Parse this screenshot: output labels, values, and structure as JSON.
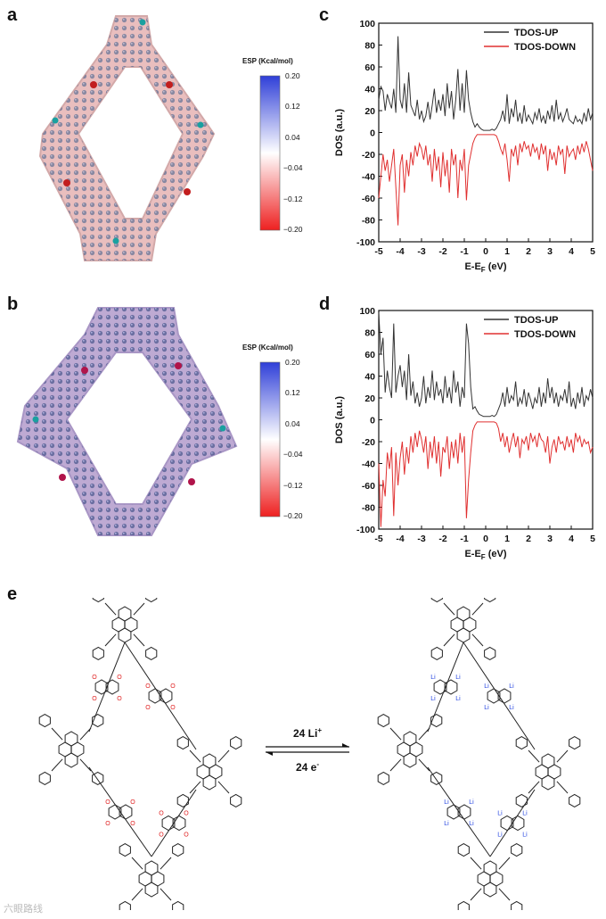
{
  "panels": {
    "a": "a",
    "b": "b",
    "c": "c",
    "d": "d",
    "e": "e"
  },
  "esp": {
    "title": "ESP (Kcal/mol)",
    "ticks": [
      "0.20",
      "0.12",
      "0.04",
      "−0.04",
      "−0.12",
      "−0.20"
    ],
    "colors": {
      "top": "#2f3fd8",
      "mid": "#ffffff",
      "bottom": "#ee2020"
    }
  },
  "chart_data": [
    {
      "type": "line",
      "panel": "c",
      "xlabel": "E-E",
      "xlabel_sub": "F",
      "xlabel_unit": " (eV)",
      "ylabel": "DOS (a.u.)",
      "xlim": [
        -5,
        5
      ],
      "ylim": [
        -100,
        100
      ],
      "xticks": [
        -5,
        -4,
        -3,
        -2,
        -1,
        0,
        1,
        2,
        3,
        4,
        5
      ],
      "yticks": [
        100,
        80,
        60,
        40,
        20,
        0,
        -20,
        -40,
        -60,
        -80,
        -100
      ],
      "legend_position": "top-right",
      "series": [
        {
          "name": "TDOS-UP",
          "color": "#333333",
          "x": [
            -5,
            -4.9,
            -4.8,
            -4.7,
            -4.6,
            -4.5,
            -4.4,
            -4.3,
            -4.2,
            -4.1,
            -4,
            -3.9,
            -3.8,
            -3.7,
            -3.6,
            -3.5,
            -3.4,
            -3.3,
            -3.2,
            -3.1,
            -3,
            -2.9,
            -2.8,
            -2.7,
            -2.6,
            -2.5,
            -2.4,
            -2.3,
            -2.2,
            -2.1,
            -2,
            -1.9,
            -1.8,
            -1.7,
            -1.6,
            -1.5,
            -1.4,
            -1.3,
            -1.2,
            -1.1,
            -1,
            -0.9,
            -0.8,
            -0.7,
            -0.6,
            -0.5,
            -0.4,
            -0.3,
            -0.2,
            -0.1,
            0,
            0.1,
            0.2,
            0.3,
            0.4,
            0.5,
            0.6,
            0.7,
            0.8,
            0.9,
            1,
            1.1,
            1.2,
            1.3,
            1.4,
            1.5,
            1.6,
            1.7,
            1.8,
            1.9,
            2,
            2.1,
            2.2,
            2.3,
            2.4,
            2.5,
            2.6,
            2.7,
            2.8,
            2.9,
            3,
            3.1,
            3.2,
            3.3,
            3.4,
            3.5,
            3.6,
            3.7,
            3.8,
            3.9,
            4,
            4.1,
            4.2,
            4.3,
            4.4,
            4.5,
            4.6,
            4.7,
            4.8,
            4.9,
            5
          ],
          "y": [
            30,
            42,
            38,
            20,
            35,
            28,
            22,
            40,
            18,
            88,
            30,
            22,
            45,
            18,
            55,
            25,
            20,
            15,
            30,
            12,
            20,
            10,
            15,
            28,
            12,
            25,
            40,
            18,
            30,
            20,
            35,
            15,
            45,
            22,
            38,
            12,
            30,
            58,
            20,
            45,
            18,
            57,
            30,
            18,
            10,
            5,
            8,
            5,
            3,
            2,
            2,
            2,
            2,
            3,
            2,
            4,
            8,
            12,
            20,
            10,
            35,
            8,
            22,
            14,
            30,
            10,
            18,
            8,
            25,
            10,
            16,
            12,
            8,
            18,
            12,
            22,
            10,
            15,
            8,
            20,
            12,
            25,
            10,
            30,
            12,
            18,
            10,
            15,
            22,
            12,
            10,
            8,
            15,
            10,
            12,
            8,
            18,
            10,
            22,
            12,
            18
          ]
        },
        {
          "name": "TDOS-DOWN",
          "color": "#e03030",
          "x": [
            -5,
            -4.9,
            -4.8,
            -4.7,
            -4.6,
            -4.5,
            -4.4,
            -4.3,
            -4.2,
            -4.1,
            -4,
            -3.9,
            -3.8,
            -3.7,
            -3.6,
            -3.5,
            -3.4,
            -3.3,
            -3.2,
            -3.1,
            -3,
            -2.9,
            -2.8,
            -2.7,
            -2.6,
            -2.5,
            -2.4,
            -2.3,
            -2.2,
            -2.1,
            -2,
            -1.9,
            -1.8,
            -1.7,
            -1.6,
            -1.5,
            -1.4,
            -1.3,
            -1.2,
            -1.1,
            -1,
            -0.9,
            -0.8,
            -0.7,
            -0.6,
            -0.5,
            -0.4,
            -0.3,
            -0.2,
            -0.1,
            0,
            0.1,
            0.2,
            0.3,
            0.4,
            0.5,
            0.6,
            0.7,
            0.8,
            0.9,
            1,
            1.1,
            1.2,
            1.3,
            1.4,
            1.5,
            1.6,
            1.7,
            1.8,
            1.9,
            2,
            2.1,
            2.2,
            2.3,
            2.4,
            2.5,
            2.6,
            2.7,
            2.8,
            2.9,
            3,
            3.1,
            3.2,
            3.3,
            3.4,
            3.5,
            3.6,
            3.7,
            3.8,
            3.9,
            4,
            4.1,
            4.2,
            4.3,
            4.4,
            4.5,
            4.6,
            4.7,
            4.8,
            4.9,
            5
          ],
          "y": [
            -60,
            -40,
            -20,
            -35,
            -25,
            -45,
            -30,
            -15,
            -50,
            -85,
            -30,
            -20,
            -55,
            -25,
            -40,
            -18,
            -30,
            -12,
            -22,
            -10,
            -15,
            -25,
            -12,
            -30,
            -20,
            -45,
            -15,
            -35,
            -22,
            -50,
            -18,
            -40,
            -25,
            -55,
            -15,
            -30,
            -20,
            -60,
            -25,
            -35,
            -15,
            -62,
            -30,
            -20,
            -10,
            -5,
            -2,
            -2,
            -2,
            -2,
            -2,
            -2,
            -2,
            -2,
            -2,
            -3,
            -8,
            -15,
            -20,
            -10,
            -25,
            -45,
            -15,
            -22,
            -12,
            -30,
            -10,
            -18,
            -8,
            -15,
            -12,
            -22,
            -10,
            -18,
            -14,
            -25,
            -10,
            -20,
            -12,
            -35,
            -15,
            -25,
            -18,
            -30,
            -12,
            -20,
            -15,
            -38,
            -12,
            -22,
            -18,
            -15,
            -25,
            -12,
            -20,
            -10,
            -18,
            -8,
            -15,
            -25,
            -35
          ]
        }
      ]
    },
    {
      "type": "line",
      "panel": "d",
      "xlabel": "E-E",
      "xlabel_sub": "F",
      "xlabel_unit": " (eV)",
      "ylabel": "DOS (a.u.)",
      "xlim": [
        -5,
        5
      ],
      "ylim": [
        -100,
        100
      ],
      "xticks": [
        -5,
        -4,
        -3,
        -2,
        -1,
        0,
        1,
        2,
        3,
        4,
        5
      ],
      "yticks": [
        100,
        80,
        60,
        40,
        20,
        0,
        -20,
        -40,
        -60,
        -80,
        -100
      ],
      "legend_position": "top-right",
      "series": [
        {
          "name": "TDOS-UP",
          "color": "#333333",
          "x": [
            -5,
            -4.9,
            -4.8,
            -4.7,
            -4.6,
            -4.5,
            -4.4,
            -4.3,
            -4.2,
            -4.1,
            -4,
            -3.9,
            -3.8,
            -3.7,
            -3.6,
            -3.5,
            -3.4,
            -3.3,
            -3.2,
            -3.1,
            -3,
            -2.9,
            -2.8,
            -2.7,
            -2.6,
            -2.5,
            -2.4,
            -2.3,
            -2.2,
            -2.1,
            -2,
            -1.9,
            -1.8,
            -1.7,
            -1.6,
            -1.5,
            -1.4,
            -1.3,
            -1.2,
            -1.1,
            -1,
            -0.9,
            -0.8,
            -0.7,
            -0.6,
            -0.5,
            -0.4,
            -0.3,
            -0.2,
            -0.1,
            0,
            0.1,
            0.2,
            0.3,
            0.4,
            0.5,
            0.6,
            0.7,
            0.8,
            0.9,
            1,
            1.1,
            1.2,
            1.3,
            1.4,
            1.5,
            1.6,
            1.7,
            1.8,
            1.9,
            2,
            2.1,
            2.2,
            2.3,
            2.4,
            2.5,
            2.6,
            2.7,
            2.8,
            2.9,
            3,
            3.1,
            3.2,
            3.3,
            3.4,
            3.5,
            3.6,
            3.7,
            3.8,
            3.9,
            4,
            4.1,
            4.2,
            4.3,
            4.4,
            4.5,
            4.6,
            4.7,
            4.8,
            4.9,
            5
          ],
          "y": [
            98,
            60,
            75,
            25,
            45,
            30,
            20,
            88,
            25,
            40,
            50,
            30,
            45,
            18,
            60,
            22,
            35,
            15,
            25,
            12,
            20,
            40,
            15,
            30,
            20,
            45,
            18,
            35,
            22,
            28,
            15,
            40,
            20,
            30,
            15,
            45,
            25,
            35,
            12,
            30,
            20,
            88,
            70,
            30,
            10,
            12,
            8,
            5,
            4,
            3,
            3,
            3,
            3,
            4,
            3,
            5,
            10,
            15,
            25,
            12,
            30,
            15,
            22,
            18,
            35,
            12,
            20,
            15,
            28,
            12,
            25,
            18,
            10,
            20,
            15,
            30,
            12,
            25,
            15,
            38,
            20,
            30,
            15,
            25,
            12,
            22,
            18,
            28,
            15,
            35,
            12,
            20,
            10,
            25,
            15,
            30,
            12,
            22,
            18,
            28,
            20
          ]
        },
        {
          "name": "TDOS-DOWN",
          "color": "#e03030",
          "x": [
            -5,
            -4.9,
            -4.8,
            -4.7,
            -4.6,
            -4.5,
            -4.4,
            -4.3,
            -4.2,
            -4.1,
            -4,
            -3.9,
            -3.8,
            -3.7,
            -3.6,
            -3.5,
            -3.4,
            -3.3,
            -3.2,
            -3.1,
            -3,
            -2.9,
            -2.8,
            -2.7,
            -2.6,
            -2.5,
            -2.4,
            -2.3,
            -2.2,
            -2.1,
            -2,
            -1.9,
            -1.8,
            -1.7,
            -1.6,
            -1.5,
            -1.4,
            -1.3,
            -1.2,
            -1.1,
            -1,
            -0.9,
            -0.8,
            -0.7,
            -0.6,
            -0.5,
            -0.4,
            -0.3,
            -0.2,
            -0.1,
            0,
            0.1,
            0.2,
            0.3,
            0.4,
            0.5,
            0.6,
            0.7,
            0.8,
            0.9,
            1,
            1.1,
            1.2,
            1.3,
            1.4,
            1.5,
            1.6,
            1.7,
            1.8,
            1.9,
            2,
            2.1,
            2.2,
            2.3,
            2.4,
            2.5,
            2.6,
            2.7,
            2.8,
            2.9,
            3,
            3.1,
            3.2,
            3.3,
            3.4,
            3.5,
            3.6,
            3.7,
            3.8,
            3.9,
            4,
            4.1,
            4.2,
            4.3,
            4.4,
            4.5,
            4.6,
            4.7,
            4.8,
            4.9,
            5
          ],
          "y": [
            -40,
            -98,
            -55,
            -70,
            -30,
            -45,
            -25,
            -88,
            -30,
            -60,
            -35,
            -20,
            -50,
            -25,
            -40,
            -15,
            -30,
            -12,
            -25,
            -10,
            -18,
            -30,
            -15,
            -45,
            -20,
            -35,
            -15,
            -40,
            -20,
            -52,
            -25,
            -30,
            -15,
            -45,
            -20,
            -35,
            -18,
            -40,
            -12,
            -30,
            -15,
            -90,
            -55,
            -30,
            -10,
            -5,
            -2,
            -2,
            -2,
            -2,
            -2,
            -2,
            -2,
            -2,
            -2,
            -3,
            -8,
            -20,
            -12,
            -25,
            -15,
            -30,
            -20,
            -12,
            -25,
            -15,
            -35,
            -18,
            -22,
            -15,
            -28,
            -12,
            -20,
            -15,
            -25,
            -12,
            -18,
            -20,
            -30,
            -15,
            -40,
            -25,
            -18,
            -30,
            -15,
            -22,
            -20,
            -28,
            -15,
            -25,
            -18,
            -30,
            -12,
            -20,
            -15,
            -25,
            -18,
            -22,
            -20,
            -30,
            -25
          ]
        }
      ]
    }
  ],
  "reaction": {
    "top_label": "24 Li",
    "top_sup": "+",
    "bottom_label": "24 e",
    "bottom_sup": "-"
  },
  "atoms": {
    "O": "O",
    "Li": "Li"
  },
  "watermark": "六眼路线"
}
